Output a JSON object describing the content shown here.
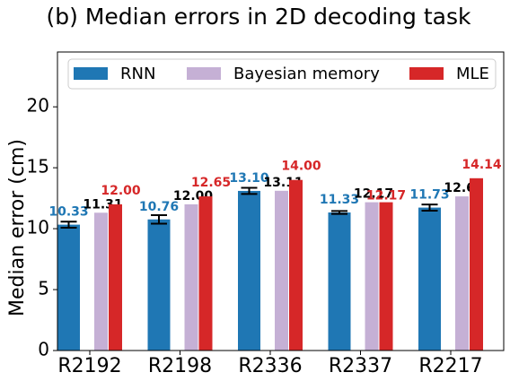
{
  "chart_data": {
    "type": "bar",
    "title": "(b)   Median errors in 2D decoding task",
    "xlabel": "",
    "ylabel": "Median error (cm)",
    "ylim": [
      0,
      24.5
    ],
    "yticks": [
      0,
      5,
      10,
      15,
      20
    ],
    "categories": [
      "R2192",
      "R2198",
      "R2336",
      "R2337",
      "R2217"
    ],
    "legend_position": "top",
    "series": [
      {
        "name": "RNN",
        "color": "#1f77b4",
        "label_color": "#1f77b4",
        "values": [
          10.33,
          10.76,
          13.1,
          11.33,
          11.73
        ],
        "labels": [
          "10.33",
          "10.76",
          "13.10",
          "11.33",
          "11.73"
        ],
        "error": [
          0.25,
          0.35,
          0.25,
          0.12,
          0.25
        ]
      },
      {
        "name": "Bayesian memory",
        "color": "#c5b0d5",
        "label_color": "#000000",
        "values": [
          11.31,
          12.0,
          13.11,
          12.17,
          12.65
        ],
        "labels": [
          "11.31",
          "12.00",
          "13.11",
          "12.17",
          "12.65"
        ]
      },
      {
        "name": "MLE",
        "color": "#d62728",
        "label_color": "#d62728",
        "values": [
          12.0,
          12.65,
          14.0,
          12.17,
          14.14
        ],
        "labels": [
          "12.00",
          "12.65",
          "14.00",
          "12.17",
          "14.14"
        ]
      }
    ]
  }
}
